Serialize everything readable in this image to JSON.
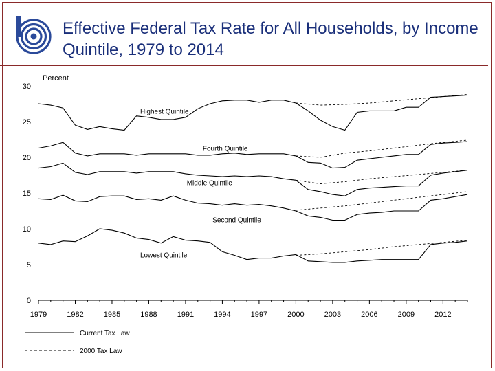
{
  "title": "Effective Federal Tax Rate for All Households, by Income Quintile, 1979 to 2014",
  "colors": {
    "title": "#1a2f7a",
    "border": "#8a2a2a",
    "logo": "#2b4a9a",
    "lines": "#000000"
  },
  "logo_icon": "cbo-logo-icon",
  "chart_data": {
    "type": "line",
    "ylabel": "Percent",
    "xlim": [
      1979,
      2014
    ],
    "ylim": [
      0,
      30
    ],
    "x_ticks": [
      1979,
      1982,
      1985,
      1988,
      1991,
      1994,
      1997,
      2000,
      2003,
      2006,
      2009,
      2012
    ],
    "y_ticks": [
      0,
      5,
      10,
      15,
      20,
      25,
      30
    ],
    "grid": false,
    "legend": {
      "placement": "bottom-left",
      "entries": [
        {
          "label": "Current Tax Law",
          "style": "solid"
        },
        {
          "label": "2000 Tax Law",
          "style": "dashed"
        }
      ]
    },
    "series": [
      {
        "name": "Highest Quintile",
        "style": "solid",
        "x": [
          1979,
          1980,
          1981,
          1982,
          1983,
          1984,
          1985,
          1986,
          1987,
          1988,
          1989,
          1990,
          1991,
          1992,
          1993,
          1994,
          1995,
          1996,
          1997,
          1998,
          1999,
          2000,
          2001,
          2002,
          2003,
          2004,
          2005,
          2006,
          2007,
          2008,
          2009,
          2010,
          2011,
          2012,
          2013,
          2014
        ],
        "y": [
          27.5,
          27.3,
          26.9,
          24.5,
          23.9,
          24.3,
          24.0,
          23.8,
          25.8,
          25.6,
          25.3,
          25.3,
          25.6,
          26.8,
          27.5,
          27.9,
          28.0,
          28.0,
          27.7,
          28.0,
          28.0,
          27.6,
          26.5,
          25.2,
          24.3,
          23.8,
          26.3,
          26.5,
          26.5,
          26.5,
          27.0,
          27.0,
          28.4,
          28.5,
          28.6,
          28.7
        ]
      },
      {
        "name": "Fourth Quintile",
        "style": "solid",
        "x": [
          1979,
          1980,
          1981,
          1982,
          1983,
          1984,
          1985,
          1986,
          1987,
          1988,
          1989,
          1990,
          1991,
          1992,
          1993,
          1994,
          1995,
          1996,
          1997,
          1998,
          1999,
          2000,
          2001,
          2002,
          2003,
          2004,
          2005,
          2006,
          2007,
          2008,
          2009,
          2010,
          2011,
          2012,
          2013,
          2014
        ],
        "y": [
          21.3,
          21.6,
          22.1,
          20.6,
          20.2,
          20.5,
          20.5,
          20.5,
          20.3,
          20.5,
          20.5,
          20.5,
          20.5,
          20.3,
          20.3,
          20.5,
          20.6,
          20.4,
          20.5,
          20.5,
          20.5,
          20.2,
          19.3,
          19.2,
          18.5,
          18.6,
          19.6,
          19.8,
          20.0,
          20.2,
          20.4,
          20.4,
          21.8,
          22.0,
          22.1,
          22.2
        ]
      },
      {
        "name": "Middle Quintile",
        "style": "solid",
        "x": [
          1979,
          1980,
          1981,
          1982,
          1983,
          1984,
          1985,
          1986,
          1987,
          1988,
          1989,
          1990,
          1991,
          1992,
          1993,
          1994,
          1995,
          1996,
          1997,
          1998,
          1999,
          2000,
          2001,
          2002,
          2003,
          2004,
          2005,
          2006,
          2007,
          2008,
          2009,
          2010,
          2011,
          2012,
          2013,
          2014
        ],
        "y": [
          18.5,
          18.7,
          19.2,
          17.9,
          17.6,
          18.0,
          18.0,
          18.0,
          17.8,
          18.0,
          18.0,
          18.0,
          17.7,
          17.5,
          17.4,
          17.3,
          17.4,
          17.3,
          17.4,
          17.3,
          17.0,
          16.8,
          15.5,
          15.2,
          14.8,
          14.6,
          15.5,
          15.7,
          15.8,
          15.9,
          16.0,
          16.0,
          17.5,
          17.8,
          18.0,
          18.2
        ]
      },
      {
        "name": "Second Quintile",
        "style": "solid",
        "x": [
          1979,
          1980,
          1981,
          1982,
          1983,
          1984,
          1985,
          1986,
          1987,
          1988,
          1989,
          1990,
          1991,
          1992,
          1993,
          1994,
          1995,
          1996,
          1997,
          1998,
          1999,
          2000,
          2001,
          2002,
          2003,
          2004,
          2005,
          2006,
          2007,
          2008,
          2009,
          2010,
          2011,
          2012,
          2013,
          2014
        ],
        "y": [
          14.2,
          14.1,
          14.7,
          13.9,
          13.8,
          14.5,
          14.6,
          14.6,
          14.1,
          14.2,
          14.0,
          14.6,
          14.0,
          13.6,
          13.5,
          13.3,
          13.5,
          13.3,
          13.4,
          13.2,
          12.9,
          12.5,
          11.8,
          11.6,
          11.2,
          11.2,
          12.0,
          12.2,
          12.3,
          12.5,
          12.5,
          12.5,
          14.0,
          14.2,
          14.5,
          14.8
        ]
      },
      {
        "name": "Lowest Quintile",
        "style": "solid",
        "x": [
          1979,
          1980,
          1981,
          1982,
          1983,
          1984,
          1985,
          1986,
          1987,
          1988,
          1989,
          1990,
          1991,
          1992,
          1993,
          1994,
          1995,
          1996,
          1997,
          1998,
          1999,
          2000,
          2001,
          2002,
          2003,
          2004,
          2005,
          2006,
          2007,
          2008,
          2009,
          2010,
          2011,
          2012,
          2013,
          2014
        ],
        "y": [
          8.0,
          7.8,
          8.3,
          8.2,
          9.0,
          10.0,
          9.8,
          9.4,
          8.7,
          8.5,
          8.0,
          8.9,
          8.4,
          8.3,
          8.1,
          6.8,
          6.3,
          5.7,
          5.9,
          5.9,
          6.2,
          6.4,
          5.5,
          5.4,
          5.3,
          5.3,
          5.5,
          5.6,
          5.7,
          5.7,
          5.7,
          5.7,
          7.8,
          8.0,
          8.1,
          8.3
        ]
      },
      {
        "name": "",
        "style": "dashed",
        "x": [
          2000,
          2002,
          2004,
          2006,
          2008,
          2010,
          2012,
          2014
        ],
        "y": [
          27.6,
          27.3,
          27.4,
          27.6,
          27.9,
          28.2,
          28.5,
          28.8
        ]
      },
      {
        "name": "",
        "style": "dashed",
        "x": [
          2000,
          2002,
          2004,
          2006,
          2008,
          2010,
          2012,
          2014
        ],
        "y": [
          20.2,
          20.0,
          20.6,
          20.9,
          21.3,
          21.7,
          22.1,
          22.4
        ]
      },
      {
        "name": "",
        "style": "dashed",
        "x": [
          2000,
          2002,
          2004,
          2006,
          2008,
          2010,
          2012,
          2014
        ],
        "y": [
          16.8,
          16.3,
          16.6,
          17.0,
          17.3,
          17.6,
          17.9,
          18.2
        ]
      },
      {
        "name": "",
        "style": "dashed",
        "x": [
          2000,
          2002,
          2004,
          2006,
          2008,
          2010,
          2012,
          2014
        ],
        "y": [
          12.6,
          12.9,
          13.2,
          13.6,
          14.0,
          14.4,
          14.8,
          15.2
        ]
      },
      {
        "name": "",
        "style": "dashed",
        "x": [
          2000,
          2002,
          2004,
          2006,
          2008,
          2010,
          2012,
          2014
        ],
        "y": [
          6.3,
          6.5,
          6.8,
          7.1,
          7.5,
          7.8,
          8.1,
          8.4
        ]
      }
    ],
    "annotations": [
      {
        "text": "Highest Quintile",
        "x": 1987.3,
        "y": 26.1
      },
      {
        "text": "Fourth Quintile",
        "x": 1992.4,
        "y": 20.9
      },
      {
        "text": "Middle Quintile",
        "x": 1991.1,
        "y": 16.1
      },
      {
        "text": "Second Quintile",
        "x": 1993.2,
        "y": 10.9
      },
      {
        "text": "Lowest Quintile",
        "x": 1987.3,
        "y": 6.0
      }
    ]
  }
}
